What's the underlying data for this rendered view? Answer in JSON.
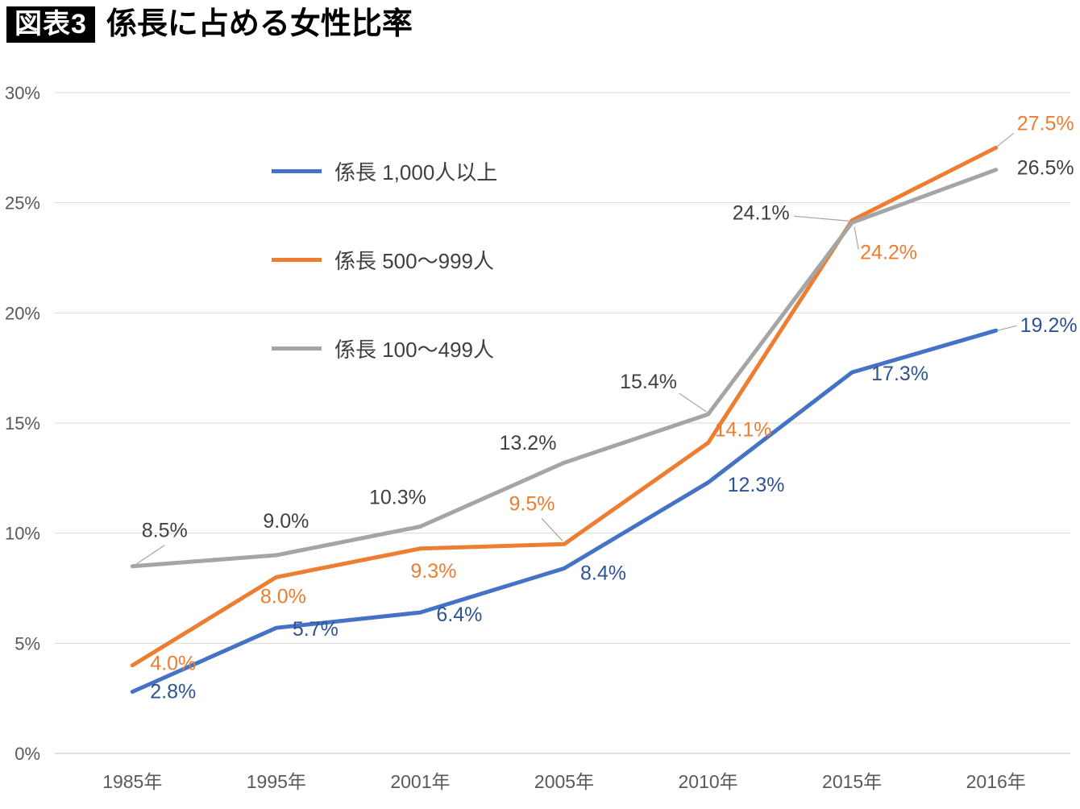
{
  "title": {
    "badge": "図表3",
    "text": "係長に占める女性比率"
  },
  "chart_data": {
    "type": "line",
    "title": "係長に占める女性比率",
    "categories": [
      "1985年",
      "1995年",
      "2001年",
      "2005年",
      "2010年",
      "2015年",
      "2016年"
    ],
    "series": [
      {
        "name": "係長 1,000人以上",
        "color": "#4472C4",
        "label_color": "#2E5395",
        "values": [
          2.8,
          5.7,
          6.4,
          8.4,
          12.3,
          17.3,
          19.2
        ],
        "labels": [
          "2.8%",
          "5.7%",
          "6.4%",
          "8.4%",
          "12.3%",
          "17.3%",
          "19.2%"
        ]
      },
      {
        "name": "係長 500〜999人",
        "color": "#ED7D31",
        "label_color": "#ED7D31",
        "values": [
          4.0,
          8.0,
          9.3,
          9.5,
          14.1,
          24.2,
          27.5
        ],
        "labels": [
          "4.0%",
          "8.0%",
          "9.3%",
          "9.5%",
          "14.1%",
          "24.2%",
          "27.5%"
        ]
      },
      {
        "name": "係長 100〜499人",
        "color": "#A5A5A5",
        "label_color": "#404040",
        "values": [
          8.5,
          9.0,
          10.3,
          13.2,
          15.4,
          24.1,
          26.5
        ],
        "labels": [
          "8.5%",
          "9.0%",
          "10.3%",
          "13.2%",
          "15.4%",
          "24.1%",
          "26.5%"
        ]
      }
    ],
    "ylim": [
      0,
      30
    ],
    "ytick_step": 5,
    "ytick_labels": [
      "0%",
      "5%",
      "10%",
      "15%",
      "20%",
      "25%",
      "30%"
    ],
    "grid": true,
    "legend_position": "inside-top-left",
    "axis_text_color": "#595959",
    "grid_color": "#D9D9D9",
    "baseline_color": "#BFBFBF",
    "leader_color": "#A6A6A6"
  }
}
